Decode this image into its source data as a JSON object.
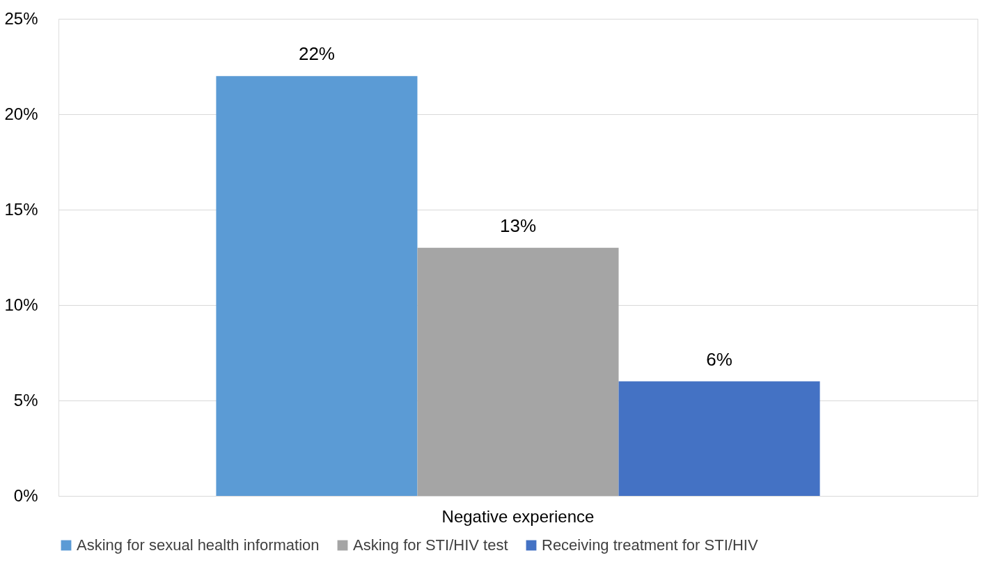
{
  "chart_data": {
    "type": "bar",
    "categories": [
      "Negative experience"
    ],
    "series": [
      {
        "name": "Asking for sexual health information",
        "color": "#5b9bd5",
        "values": [
          22
        ],
        "value_labels": [
          "22%"
        ]
      },
      {
        "name": "Asking for STI/HIV test",
        "color": "#a5a5a5",
        "values": [
          13
        ],
        "value_labels": [
          "13%"
        ]
      },
      {
        "name": "Receiving treatment for STI/HIV",
        "color": "#4472c4",
        "values": [
          6
        ],
        "value_labels": [
          "6%"
        ]
      }
    ],
    "ylim": [
      0,
      25
    ],
    "yticks": [
      {
        "value": 0,
        "label": "0%"
      },
      {
        "value": 5,
        "label": "5%"
      },
      {
        "value": 10,
        "label": "10%"
      },
      {
        "value": 15,
        "label": "15%"
      },
      {
        "value": 20,
        "label": "20%"
      },
      {
        "value": 25,
        "label": "25%"
      }
    ],
    "grid": "y",
    "legend": "bottom"
  }
}
